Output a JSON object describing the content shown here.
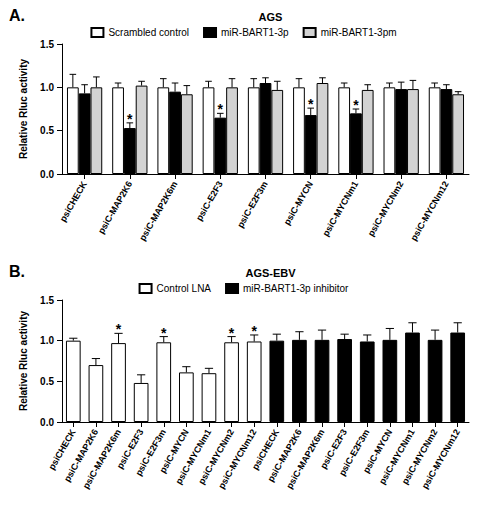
{
  "chart_data": [
    {
      "type": "bar",
      "label": "A.",
      "title": "AGS",
      "legend": "top",
      "y_label": "Relative Rluc activity",
      "categories": [
        "psiCHECK",
        "psiC-MAP2K6",
        "psiC-MAP2K6m",
        "psiC-E2F3",
        "psiC-E2F3m",
        "psiC-MYCN",
        "psiC-MYCNm1",
        "psiC-MYCNm2",
        "psiC-MYCNm12"
      ],
      "ylim": [
        0,
        1.5
      ],
      "yticks": [
        {
          "value": 0,
          "label": "0.0"
        },
        {
          "value": 0.5,
          "label": "0.5"
        },
        {
          "value": 1,
          "label": "1.0"
        },
        {
          "value": 1.5,
          "label": "1.5"
        }
      ],
      "series": [
        {
          "name": "Scrambled control",
          "color": "#ffffff",
          "values": [
            1.0,
            1.0,
            1.0,
            1.0,
            1.0,
            1.0,
            1.0,
            1.0,
            1.0
          ],
          "errors": [
            0.15,
            0.05,
            0.1,
            0.07,
            0.1,
            0.1,
            0.05,
            0.05,
            0.05
          ]
        },
        {
          "name": "miR-BART1-3p",
          "color": "#000000",
          "values": [
            0.93,
            0.53,
            0.95,
            0.65,
            1.05,
            0.68,
            0.7,
            0.98,
            0.98
          ],
          "errors": [
            0.1,
            0.06,
            0.1,
            0.05,
            0.06,
            0.08,
            0.05,
            0.08,
            0.05
          ]
        },
        {
          "name": "miR-BART1-3pm",
          "color": "#d3d3d3",
          "values": [
            1.0,
            1.02,
            0.92,
            1.0,
            0.97,
            1.05,
            0.97,
            0.98,
            0.92
          ],
          "errors": [
            0.12,
            0.05,
            0.1,
            0.1,
            0.1,
            0.06,
            0.06,
            0.1,
            0.03
          ]
        }
      ],
      "annotations": [
        {
          "series": "miR-BART1-3p",
          "index": 1,
          "text": "*"
        },
        {
          "series": "miR-BART1-3p",
          "index": 3,
          "text": "*"
        },
        {
          "series": "miR-BART1-3p",
          "index": 5,
          "text": "*"
        },
        {
          "series": "miR-BART1-3p",
          "index": 6,
          "text": "*"
        }
      ]
    },
    {
      "type": "bar",
      "label": "B.",
      "title": "AGS-EBV",
      "legend": "top",
      "y_label": "Relative Rluc activity",
      "categories": [
        "psiCHECK",
        "psiC-MAP2K6",
        "psiC-MAP2K6m",
        "psiC-E2F3",
        "psiC-E2F3m",
        "psiC-MYCN",
        "psiC-MYCNm1",
        "psiC-MYCNm2",
        "psiC-MYCNm12",
        "psiCHECK",
        "psiC-MAP2K6",
        "psiC-MAP2K6m",
        "psiC-E2F3",
        "psiC-E2F3m",
        "psiC-MYCN",
        "psiC-MYCNm1",
        "psiC-MYCNm2",
        "psiC-MYCNm12"
      ],
      "ylim": [
        0,
        1.5
      ],
      "yticks": [
        {
          "value": 0,
          "label": "0.0"
        },
        {
          "value": 0.5,
          "label": "0.5"
        },
        {
          "value": 1,
          "label": "1.0"
        },
        {
          "value": 1.5,
          "label": "1.5"
        }
      ],
      "series": [
        {
          "name": "Control LNA",
          "color": "#ffffff",
          "values": [
            1.0,
            0.7,
            0.97,
            0.48,
            0.98,
            0.61,
            0.6,
            0.98,
            0.99,
            null,
            null,
            null,
            null,
            null,
            null,
            null,
            null,
            null
          ],
          "errors": [
            0.03,
            0.08,
            0.12,
            0.1,
            0.07,
            0.07,
            0.06,
            0.07,
            0.08,
            null,
            null,
            null,
            null,
            null,
            null,
            null,
            null,
            null
          ]
        },
        {
          "name": "miR-BART1-3p inhibitor",
          "color": "#000000",
          "values": [
            null,
            null,
            null,
            null,
            null,
            null,
            null,
            null,
            null,
            1.0,
            1.01,
            1.01,
            1.02,
            0.99,
            1.01,
            1.1,
            1.01,
            1.1
          ],
          "errors": [
            null,
            null,
            null,
            null,
            null,
            null,
            null,
            null,
            null,
            0.08,
            0.1,
            0.12,
            0.06,
            0.08,
            0.14,
            0.12,
            0.12,
            0.12
          ]
        }
      ],
      "annotations": [
        {
          "series": "Control LNA",
          "index": 2,
          "text": "*"
        },
        {
          "series": "Control LNA",
          "index": 4,
          "text": "*"
        },
        {
          "series": "Control LNA",
          "index": 7,
          "text": "*"
        },
        {
          "series": "Control LNA",
          "index": 8,
          "text": "*"
        }
      ]
    }
  ]
}
